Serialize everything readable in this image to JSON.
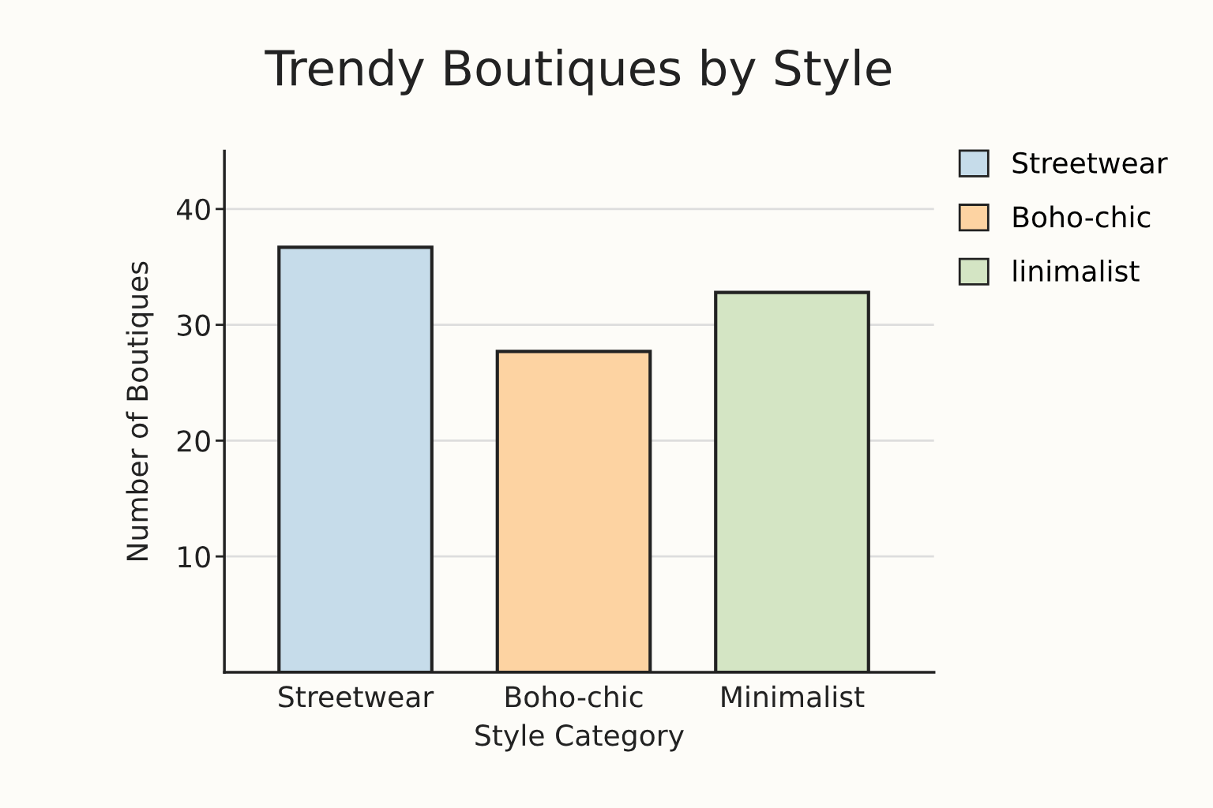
{
  "chart_data": {
    "type": "bar",
    "title": "Trendy Boutiques by Style",
    "xlabel": "Style Category",
    "ylabel": "Number of Boutiques",
    "categories": [
      "Streetwear",
      "Boho-chic",
      "Minimalist"
    ],
    "series": [
      {
        "name": "Streetwear",
        "color": "#c6dcea",
        "values": [
          36.7,
          null,
          null
        ]
      },
      {
        "name": "Boho-chic",
        "color": "#fdd3a2",
        "values": [
          null,
          27.7,
          null
        ]
      },
      {
        "name": "linimalist",
        "color": "#d4e5c4",
        "values": [
          null,
          null,
          32.8
        ]
      }
    ],
    "ylim": [
      0,
      45
    ],
    "yticks": [
      10,
      20,
      30,
      40
    ],
    "grid": "y",
    "legend": "top right"
  }
}
